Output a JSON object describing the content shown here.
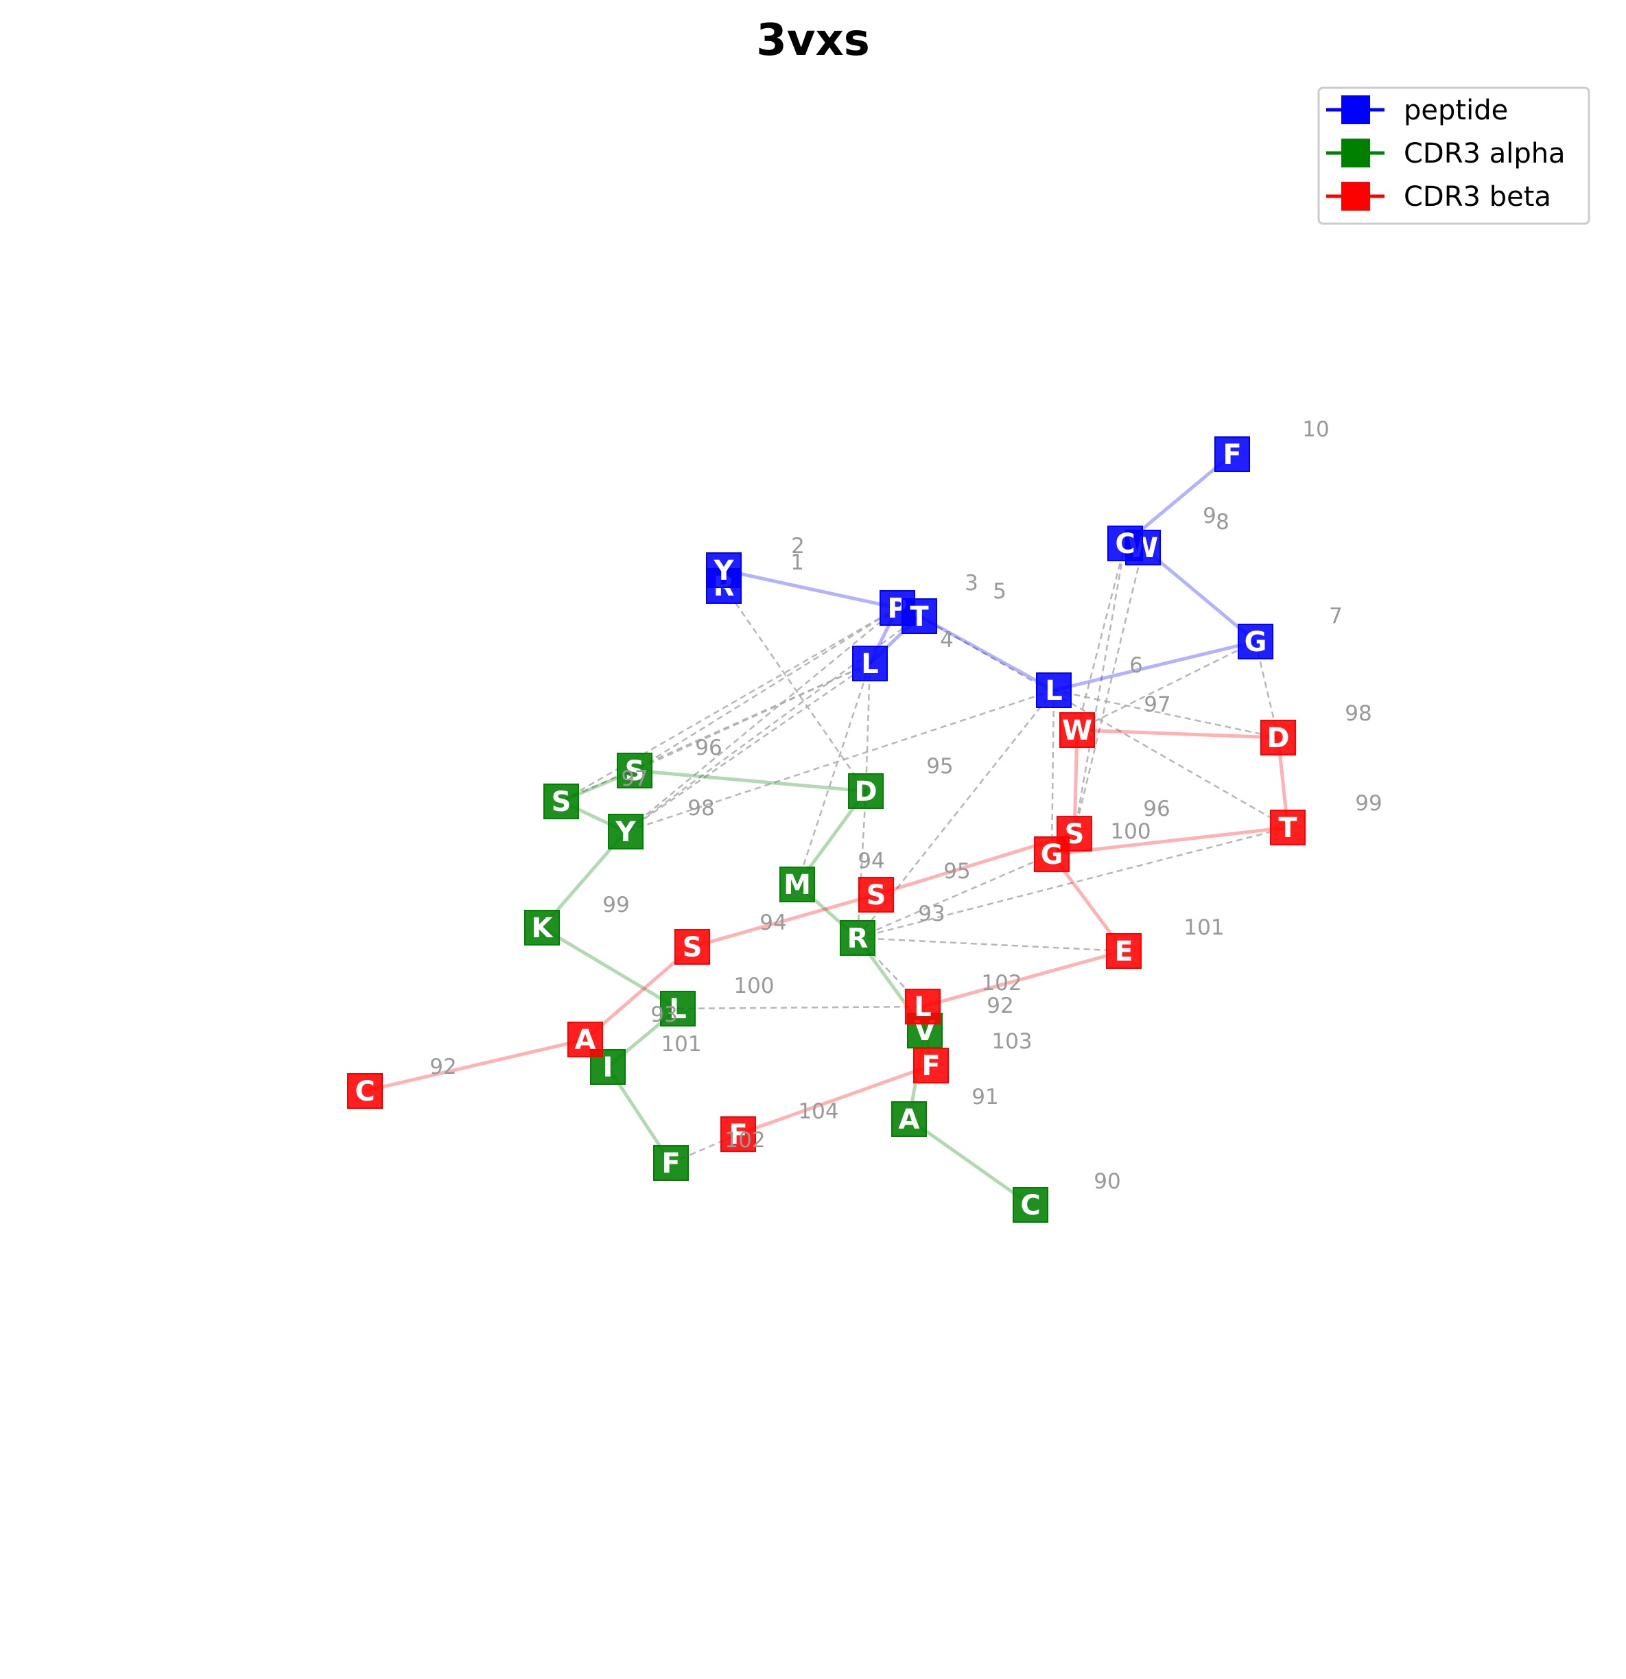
{
  "title": "3vxs",
  "colors": {
    "peptide": "#0000ff",
    "cdr3_alpha": "#008000",
    "cdr3_beta": "#ff0000",
    "contact": "#aaaaaa",
    "index_label": "#999999"
  },
  "legend": {
    "placement": "upper-right",
    "entries": [
      {
        "key": "peptide",
        "label": "peptide"
      },
      {
        "key": "cdr3_alpha",
        "label": "CDR3 alpha"
      },
      {
        "key": "cdr3_beta",
        "label": "CDR3 beta"
      }
    ]
  },
  "chains": {
    "peptide": [
      {
        "id": "p1",
        "res": "R",
        "num": "1"
      },
      {
        "id": "p2",
        "res": "Y",
        "num": "2"
      },
      {
        "id": "p3",
        "res": "P",
        "num": "3"
      },
      {
        "id": "p4",
        "res": "L",
        "num": "4"
      },
      {
        "id": "p5",
        "res": "T",
        "num": "5"
      },
      {
        "id": "p6",
        "res": "L",
        "num": "6"
      },
      {
        "id": "p7",
        "res": "G",
        "num": "7"
      },
      {
        "id": "p8",
        "res": "W",
        "num": "8"
      },
      {
        "id": "p9",
        "res": "C",
        "num": "9"
      },
      {
        "id": "p10",
        "res": "F",
        "num": "10"
      }
    ],
    "cdr3_alpha": [
      {
        "id": "a90",
        "res": "C",
        "num": "90"
      },
      {
        "id": "a91",
        "res": "A",
        "num": "91"
      },
      {
        "id": "a92",
        "res": "V",
        "num": "92"
      },
      {
        "id": "a93",
        "res": "R",
        "num": "93"
      },
      {
        "id": "a94",
        "res": "M",
        "num": "94"
      },
      {
        "id": "a95",
        "res": "D",
        "num": "95"
      },
      {
        "id": "a96",
        "res": "S",
        "num": "96"
      },
      {
        "id": "a97",
        "res": "S",
        "num": "97"
      },
      {
        "id": "a98",
        "res": "Y",
        "num": "98"
      },
      {
        "id": "a99",
        "res": "K",
        "num": "99"
      },
      {
        "id": "a100",
        "res": "L",
        "num": "100"
      },
      {
        "id": "a101",
        "res": "I",
        "num": "101"
      },
      {
        "id": "a102",
        "res": "F",
        "num": "102"
      }
    ],
    "cdr3_beta": [
      {
        "id": "b92",
        "res": "C",
        "num": "92"
      },
      {
        "id": "b93",
        "res": "A",
        "num": "93"
      },
      {
        "id": "b94",
        "res": "S",
        "num": "94"
      },
      {
        "id": "b95",
        "res": "S",
        "num": "95"
      },
      {
        "id": "b96",
        "res": "S",
        "num": "96"
      },
      {
        "id": "b97",
        "res": "W",
        "num": "97"
      },
      {
        "id": "b98",
        "res": "D",
        "num": "98"
      },
      {
        "id": "b99",
        "res": "T",
        "num": "99"
      },
      {
        "id": "b100",
        "res": "G",
        "num": "100"
      },
      {
        "id": "b101",
        "res": "E",
        "num": "101"
      },
      {
        "id": "b102",
        "res": "L",
        "num": "102"
      },
      {
        "id": "b103",
        "res": "F",
        "num": "103"
      },
      {
        "id": "b104",
        "res": "F",
        "num": "104"
      }
    ]
  },
  "contacts": [
    [
      "p1",
      "a95"
    ],
    [
      "p3",
      "a96"
    ],
    [
      "p3",
      "a97"
    ],
    [
      "p3",
      "a98"
    ],
    [
      "p4",
      "a94"
    ],
    [
      "p4",
      "a95"
    ],
    [
      "p4",
      "a96"
    ],
    [
      "p4",
      "a97"
    ],
    [
      "p4",
      "a98"
    ],
    [
      "p5",
      "a98"
    ],
    [
      "p5",
      "b99"
    ],
    [
      "p6",
      "a93"
    ],
    [
      "p6",
      "a98"
    ],
    [
      "p6",
      "b98"
    ],
    [
      "p6",
      "b100"
    ],
    [
      "p7",
      "b98"
    ],
    [
      "p7",
      "b97"
    ],
    [
      "p8",
      "b96"
    ],
    [
      "p9",
      "b96"
    ],
    [
      "p9",
      "b97"
    ],
    [
      "a95",
      "a93"
    ],
    [
      "a93",
      "b100"
    ],
    [
      "a93",
      "b99"
    ],
    [
      "a93",
      "b101"
    ],
    [
      "a93",
      "b102"
    ],
    [
      "a100",
      "b102"
    ],
    [
      "a102",
      "b104"
    ]
  ]
}
